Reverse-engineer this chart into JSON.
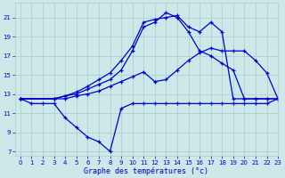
{
  "xlabel": "Graphe des températures (°c)",
  "bg_color": "#cce8e8",
  "grid_color": "#aacccc",
  "line_color": "#0000cc",
  "xlim": [
    -0.5,
    23
  ],
  "ylim": [
    6.5,
    22.5
  ],
  "xticks": [
    0,
    1,
    2,
    3,
    4,
    5,
    6,
    7,
    8,
    9,
    10,
    11,
    12,
    13,
    14,
    15,
    16,
    17,
    18,
    19,
    20,
    21,
    22,
    23
  ],
  "yticks": [
    7,
    9,
    11,
    13,
    15,
    17,
    19,
    21
  ],
  "s1_x": [
    0,
    1,
    2,
    3,
    4,
    5,
    6,
    7,
    8,
    9,
    10,
    11,
    12,
    13,
    14,
    15,
    16,
    17,
    18,
    19,
    20,
    21,
    22,
    23
  ],
  "s1_y": [
    12.5,
    12.0,
    12.0,
    12.0,
    10.5,
    9.5,
    8.5,
    8.0,
    7.0,
    11.5,
    12.0,
    12.0,
    12.0,
    12.0,
    12.0,
    12.0,
    12.0,
    12.0,
    12.0,
    12.0,
    12.0,
    12.0,
    12.0,
    12.5
  ],
  "s2_x": [
    0,
    3,
    4,
    5,
    6,
    7,
    8,
    9,
    10,
    11,
    12,
    13,
    14,
    15,
    16,
    17,
    18,
    19,
    20,
    21,
    22,
    23
  ],
  "s2_y": [
    12.5,
    12.5,
    12.5,
    12.8,
    13.0,
    13.3,
    13.8,
    14.3,
    14.8,
    15.3,
    14.3,
    14.5,
    15.5,
    16.5,
    17.3,
    17.8,
    17.5,
    17.5,
    17.5,
    16.5,
    15.2,
    12.5
  ],
  "s3_x": [
    0,
    3,
    4,
    5,
    6,
    7,
    8,
    9,
    10,
    11,
    12,
    13,
    14,
    15,
    16,
    17,
    18,
    19,
    20,
    21,
    22,
    23
  ],
  "s3_y": [
    12.5,
    12.5,
    12.8,
    13.2,
    13.8,
    14.5,
    15.2,
    16.5,
    18.0,
    20.5,
    20.8,
    21.0,
    21.2,
    20.0,
    19.5,
    20.5,
    19.5,
    12.5,
    12.5,
    12.5,
    12.5,
    12.5
  ],
  "s4_x": [
    0,
    3,
    4,
    5,
    6,
    7,
    8,
    9,
    10,
    11,
    12,
    13,
    14,
    15,
    16,
    17,
    18,
    19,
    20,
    21,
    22,
    23
  ],
  "s4_y": [
    12.5,
    12.5,
    12.8,
    13.0,
    13.5,
    14.0,
    14.5,
    15.5,
    17.5,
    20.0,
    20.5,
    21.5,
    21.0,
    19.5,
    17.5,
    17.0,
    16.2,
    15.5,
    12.5,
    12.5,
    12.5,
    12.5
  ]
}
